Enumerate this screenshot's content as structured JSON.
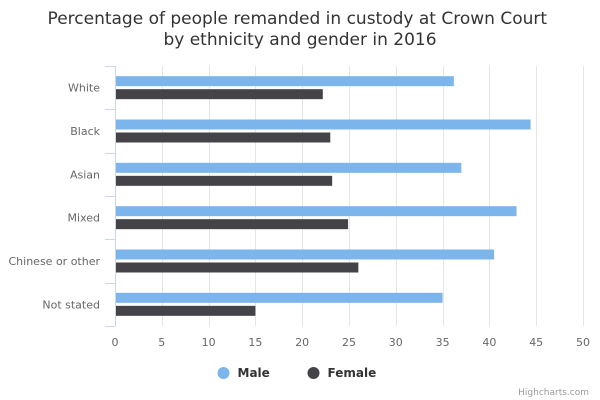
{
  "chart_data": {
    "type": "bar",
    "orientation": "horizontal",
    "title": "Percentage of people remanded in custody at Crown Court by ethnicity and gender in 2016",
    "title_lines": [
      "Percentage of people remanded in custody at Crown Court",
      "by ethnicity and gender in 2016"
    ],
    "categories": [
      "White",
      "Black",
      "Asian",
      "Mixed",
      "Chinese or other",
      "Not stated"
    ],
    "series": [
      {
        "name": "Male",
        "color": "#7cb5ec",
        "values": [
          36.2,
          44.4,
          37.0,
          42.9,
          40.5,
          35.0
        ]
      },
      {
        "name": "Female",
        "color": "#434348",
        "values": [
          22.2,
          23.0,
          23.2,
          24.9,
          26.0,
          15.0
        ]
      }
    ],
    "xlim": [
      0,
      50
    ],
    "xticks": [
      0,
      5,
      10,
      15,
      20,
      25,
      30,
      35,
      40,
      45,
      50
    ],
    "grid": true,
    "legend": "bottom-center",
    "credits": "Highcharts.com"
  }
}
